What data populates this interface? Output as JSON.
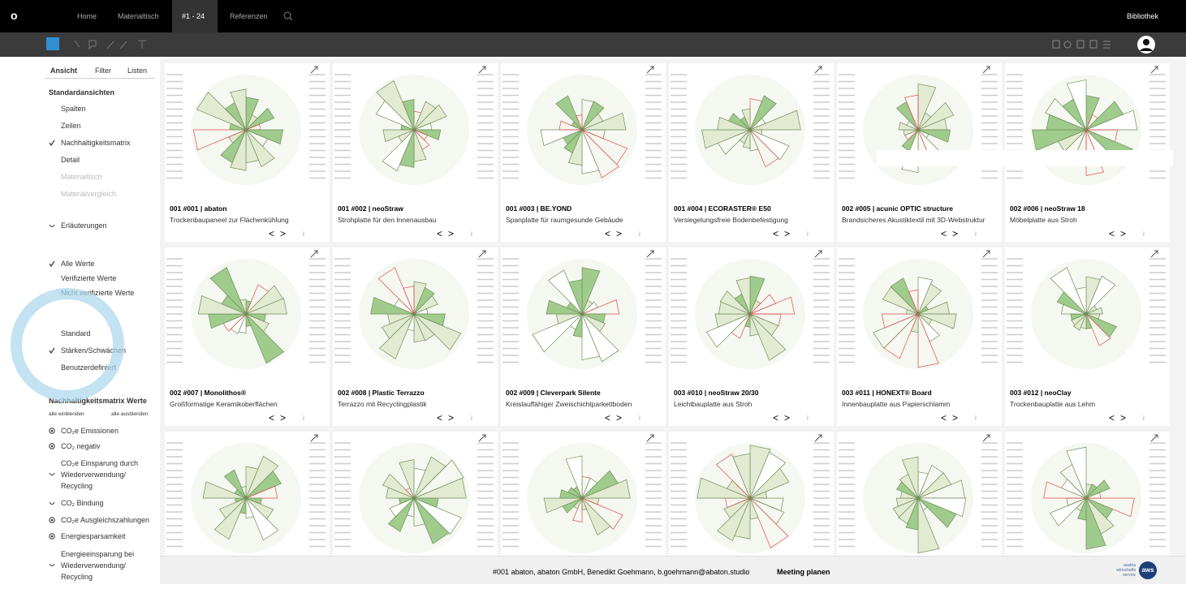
{
  "nav": {
    "logo": "o",
    "items": [
      "Home",
      "Materialtisch",
      "#1 - 24",
      "Referenzen"
    ],
    "right": "Bibliothek"
  },
  "sidebar": {
    "tabs": [
      "Ansicht",
      "Filter",
      "Listen"
    ],
    "standard_title": "Standardansichten",
    "views": [
      "Spalten",
      "Zeilen",
      "Nachhaltigkeitsmatrix",
      "Detail",
      "Materialtisch",
      "Materialvergleich"
    ],
    "explanations": "Erläuterungen",
    "values": [
      "Alle Werte",
      "Verifizierte Werte",
      "Nicht verifizierte Werte"
    ],
    "modes": [
      "Standard",
      "Stärken/Schwächen",
      "Benutzerdefiniert"
    ],
    "matrix_title": "Nachhaltigkeitsmatrix Werte",
    "show_all": "alle einblenden",
    "hide_all": "alle ausblenden",
    "matrix_items": [
      "CO₂e Emissionen",
      "CO₂ negativ",
      "CO₂e Einsparung durch Wiederverwendung/ Recycling",
      "CO₂ Bindung",
      "CO₂e Ausgleichszahlungen",
      "Energiesparsamkeit",
      "Energieeinsparung bei Wiederverwendung/ Recycling"
    ]
  },
  "card_controls": {
    "prev": "<",
    "next": ">",
    "info": "i"
  },
  "cards": [
    {
      "title": "001 #001 | abaton",
      "subtitle": "Trockenbaupaneel zur Flächenkühlung"
    },
    {
      "title": "001 #002 | neoStraw",
      "subtitle": "Strohplatte für den Innenausbau"
    },
    {
      "title": "001 #003 | BE.YOND",
      "subtitle": "Spanplatte für raumgesunde Gebäude"
    },
    {
      "title": "001 #004 | ECORASTER® E50",
      "subtitle": "Versiegelungsfreie Bodenbefestigung"
    },
    {
      "title": "002 #005 | acunic OPTIC structure",
      "subtitle": "Brandsicheres Akustiktextil mit 3D-Webstruktur"
    },
    {
      "title": "002 #006 | neoStraw 18",
      "subtitle": "Möbelplatte aus Stroh"
    },
    {
      "title": "002 #007 | Monolithos®",
      "subtitle": "Großformatige Keramikoberflächen"
    },
    {
      "title": "002 #008 | Plastic Terrazzo",
      "subtitle": "Terrazzo mit Recyclingplastik"
    },
    {
      "title": "002 #009 | Cleverpark Silente",
      "subtitle": "Kreislauffähiger Zweischichtparkettboden"
    },
    {
      "title": "003 #010 | neoStraw 20/30",
      "subtitle": "Leichtbauplatte aus Stroh"
    },
    {
      "title": "003 #011 | HONEXT® Board",
      "subtitle": "Innenbauplatte aus Papierschlamm"
    },
    {
      "title": "003 #012 | neoClay",
      "subtitle": "Trockenbauplatte aus Lehm"
    }
  ],
  "footer": {
    "contact": "#001 abaton, abaton GmbH, Benedikt Goehmann, b.goehmann@abaton.studio",
    "action": "Meeting planen",
    "logo": [
      "austria",
      "wirtschafts",
      "service"
    ],
    "badge": "aws"
  }
}
